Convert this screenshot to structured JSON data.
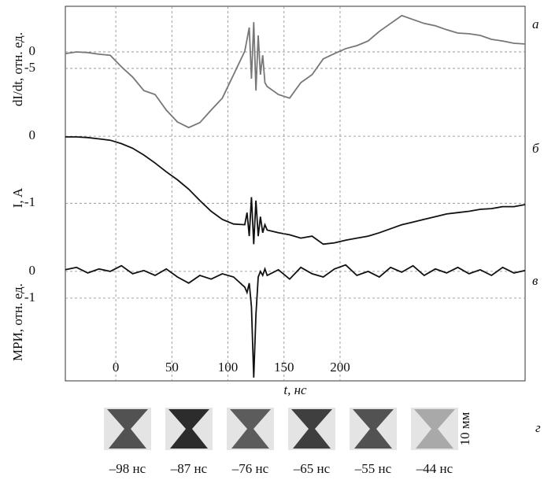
{
  "chart_data": [
    {
      "type": "line",
      "label": "а",
      "ylabel": "dI/dt, отн. ед.",
      "color": "#777777",
      "xlim": [
        -45,
        365
      ],
      "ylim": [
        -24.3,
        13.8
      ],
      "yticks": [
        0,
        -5
      ],
      "grid": true,
      "x": [
        -45,
        -35,
        -25,
        -15,
        -5,
        5,
        15,
        25,
        35,
        45,
        55,
        65,
        75,
        85,
        95,
        105,
        115,
        117,
        119,
        121,
        123,
        125,
        127,
        129,
        131,
        133,
        135,
        145,
        155,
        165,
        175,
        185,
        195,
        205,
        215,
        225,
        235,
        245,
        255,
        265,
        275,
        285,
        295,
        305,
        315,
        325,
        335,
        345,
        355,
        365
      ],
      "values": [
        -0.5,
        0,
        -0.2,
        -0.7,
        -1,
        -4.5,
        -7.6,
        -11.7,
        -12.9,
        -17.6,
        -21.2,
        -22.9,
        -21.4,
        -17.6,
        -14,
        -6.9,
        0.2,
        3.8,
        7.4,
        -8.1,
        9,
        -11.7,
        5,
        -6.9,
        -1,
        -9.3,
        -10.5,
        -12.9,
        -14,
        -9.3,
        -6.9,
        -2.1,
        -0.5,
        1,
        1.9,
        3.3,
        6.2,
        8.6,
        11,
        9.8,
        8.6,
        7.9,
        6.7,
        5.7,
        5.5,
        5,
        3.8,
        3.3,
        2.6,
        2.4
      ]
    },
    {
      "type": "line",
      "label": "б",
      "ylabel": "I, A",
      "color": "#111111",
      "xlim": [
        -45,
        365
      ],
      "ylim": [
        -1.9,
        0.06
      ],
      "yticks": [
        0,
        -1
      ],
      "grid": true,
      "x": [
        -45,
        -35,
        -25,
        -15,
        -5,
        5,
        15,
        25,
        35,
        45,
        55,
        65,
        75,
        85,
        95,
        105,
        115,
        117,
        119,
        121,
        123,
        125,
        127,
        129,
        131,
        133,
        135,
        145,
        155,
        165,
        175,
        185,
        195,
        205,
        215,
        225,
        235,
        245,
        255,
        265,
        275,
        285,
        295,
        305,
        315,
        325,
        335,
        345,
        355,
        365
      ],
      "values": [
        -0.01,
        -0.01,
        -0.02,
        -0.04,
        -0.06,
        -0.11,
        -0.18,
        -0.28,
        -0.4,
        -0.53,
        -0.65,
        -0.79,
        -0.96,
        -1.12,
        -1.24,
        -1.31,
        -1.32,
        -1.14,
        -1.49,
        -0.91,
        -1.61,
        -0.96,
        -1.49,
        -1.2,
        -1.44,
        -1.32,
        -1.4,
        -1.44,
        -1.47,
        -1.52,
        -1.49,
        -1.61,
        -1.59,
        -1.55,
        -1.52,
        -1.49,
        -1.44,
        -1.38,
        -1.32,
        -1.28,
        -1.24,
        -1.2,
        -1.16,
        -1.14,
        -1.12,
        -1.09,
        -1.08,
        -1.05,
        -1.05,
        -1.02
      ]
    },
    {
      "type": "line",
      "label": "в",
      "ylabel": "МРИ, отн. ед.",
      "color": "#111111",
      "xlim": [
        -45,
        365
      ],
      "ylim": [
        -4.09,
        0.29
      ],
      "yticks": [
        0,
        -1
      ],
      "grid": true,
      "xlabel": "t, нс",
      "xticks": [
        0,
        50,
        100,
        150,
        200
      ],
      "x": [
        -45,
        -35,
        -25,
        -15,
        -5,
        5,
        15,
        25,
        35,
        45,
        55,
        65,
        75,
        85,
        95,
        105,
        115,
        117,
        119,
        121,
        123,
        125,
        127,
        129,
        131,
        133,
        135,
        145,
        155,
        165,
        175,
        185,
        195,
        205,
        215,
        225,
        235,
        245,
        255,
        265,
        275,
        285,
        295,
        305,
        315,
        325,
        335,
        345,
        355,
        365
      ],
      "values": [
        0.06,
        0.15,
        -0.06,
        0.09,
        0,
        0.21,
        -0.09,
        0.03,
        -0.15,
        0.09,
        -0.21,
        -0.44,
        -0.15,
        -0.29,
        -0.09,
        -0.21,
        -0.59,
        -0.79,
        -0.44,
        -1.32,
        -3.97,
        -1.62,
        -0.21,
        0,
        -0.15,
        0.09,
        -0.15,
        0.06,
        -0.29,
        0.15,
        -0.09,
        -0.21,
        0.09,
        0.24,
        -0.15,
        0,
        -0.21,
        0.15,
        -0.03,
        0.21,
        -0.15,
        0.09,
        -0.06,
        0.15,
        -0.09,
        0.06,
        -0.15,
        0.15,
        -0.06,
        0.03
      ]
    }
  ],
  "frames_panel": {
    "label": "г",
    "scale": "10 мм",
    "frames": [
      "–98 нс",
      "–87 нс",
      "–76 нс",
      "–65 нс",
      "–55 нс",
      "–44 нс"
    ]
  }
}
